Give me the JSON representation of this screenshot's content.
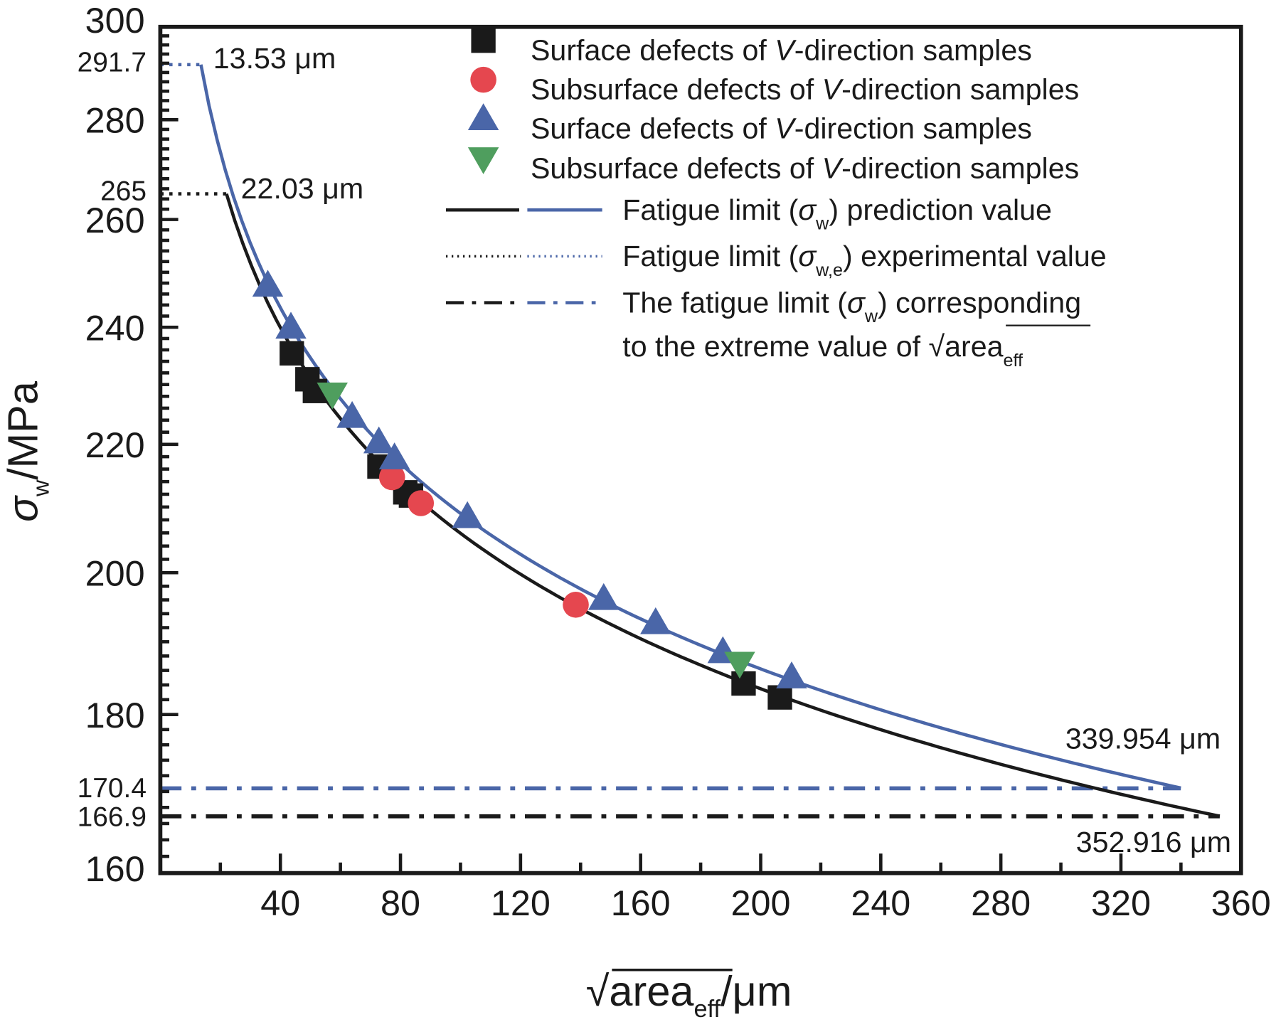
{
  "chart_data": {
    "type": "scatter",
    "title": "",
    "xlabel": "√area_eff/μm",
    "xlabel_parts": {
      "root": "√",
      "base": "area",
      "sub": "eff",
      "unit": "/μm"
    },
    "ylabel": "σw/MPa",
    "ylabel_parts": {
      "sym": "σ",
      "sub": "w",
      "unit": "/MPa"
    },
    "xlim": [
      0,
      360
    ],
    "ylim": [
      160,
      300
    ],
    "yscale": "log",
    "x_ticks": [
      40,
      80,
      120,
      160,
      200,
      240,
      280,
      320,
      360
    ],
    "x_tick_labels": [
      "40",
      "80",
      "120",
      "160",
      "200",
      "240",
      "280",
      "320",
      "360"
    ],
    "y_ticks": [
      160,
      180,
      200,
      220,
      240,
      260,
      280,
      300
    ],
    "y_tick_labels": [
      "160",
      "180",
      "200",
      "220",
      "240",
      "260",
      "280",
      "300"
    ],
    "y_special_ticks": [
      {
        "value": 291.7,
        "label": "291.7"
      },
      {
        "value": 265,
        "label": "265"
      },
      {
        "value": 170.4,
        "label": "170.4"
      },
      {
        "value": 166.9,
        "label": "166.9"
      }
    ],
    "grid": false,
    "legend_position": "top-right",
    "series": [
      {
        "name": "Surface defects of V-direction samples",
        "marker": "square",
        "color": "#1a1a1a",
        "points": [
          [
            43.8,
            235.4
          ],
          [
            49,
            230.9
          ],
          [
            51.5,
            228.9
          ],
          [
            73,
            216.4
          ],
          [
            81.6,
            212.3
          ],
          [
            83.5,
            211.8
          ],
          [
            194.3,
            184.2
          ],
          [
            206.4,
            182.3
          ]
        ]
      },
      {
        "name": "Subsurface defects of V-direction samples",
        "marker": "circle",
        "color": "#e5474f",
        "points": [
          [
            77.2,
            214.7
          ],
          [
            86.8,
            210.6
          ],
          [
            138.4,
            195.3
          ]
        ]
      },
      {
        "name": "Surface defects of V-direction samples",
        "marker": "triangle-up",
        "color": "#4a66a8",
        "points": [
          [
            35.8,
            247.6
          ],
          [
            43.5,
            240
          ],
          [
            63.9,
            224.6
          ],
          [
            72.8,
            220.4
          ],
          [
            78,
            217.8
          ],
          [
            102.3,
            208.5
          ],
          [
            147.7,
            196.2
          ],
          [
            165,
            192.7
          ],
          [
            187.4,
            188.6
          ],
          [
            210.3,
            185.1
          ]
        ]
      },
      {
        "name": "Subsurface defects of V-direction samples",
        "marker": "triangle-down",
        "color": "#4f9e5e",
        "points": [
          [
            57.3,
            228.4
          ],
          [
            193,
            187
          ]
        ]
      }
    ],
    "curves": [
      {
        "name": "Fatigue limit (σw) prediction value (black)",
        "color": "#1a1a1a",
        "x_start": 22.03,
        "x_end": 352.916,
        "y_start": 265,
        "y_end": 166.9,
        "form": "y = A·x^(-1/6)"
      },
      {
        "name": "Fatigue limit (σw) prediction value (blue)",
        "color": "#4a66a8",
        "x_start": 13.53,
        "x_end": 339.954,
        "y_start": 291.7,
        "y_end": 170.4,
        "form": "y = A·x^(-1/6)"
      }
    ],
    "reference_lines": [
      {
        "name": "Fatigue limit (σw,e) experimental value (blue)",
        "style": "dotted",
        "color": "#4a66a8",
        "y": 291.7,
        "x_from": 0,
        "x_to": 13.53
      },
      {
        "name": "Fatigue limit (σw,e) experimental value (black)",
        "style": "dotted",
        "color": "#1a1a1a",
        "y": 265,
        "x_from": 0,
        "x_to": 22.03
      },
      {
        "name": "Fatigue limit at extreme √area_eff (blue)",
        "style": "dash-dot",
        "color": "#4a66a8",
        "y": 170.4,
        "x_from": 0,
        "x_to": 339.954
      },
      {
        "name": "Fatigue limit at extreme √area_eff (black)",
        "style": "dash-dot",
        "color": "#1a1a1a",
        "y": 166.9,
        "x_from": 0,
        "x_to": 352.916
      }
    ],
    "annotations": [
      {
        "text": "13.53 μm",
        "x": 13.53,
        "y": 291.7
      },
      {
        "text": "22.03 μm",
        "x": 22.03,
        "y": 265
      },
      {
        "text": "339.954 μm",
        "x": 339.954,
        "y": 170.4
      },
      {
        "text": "352.916 μm",
        "x": 352.916,
        "y": 166.9
      }
    ],
    "legend": [
      {
        "symbol": "square",
        "color": "#1a1a1a",
        "pre": "Surface defects of ",
        "ital": "V",
        "post": "-direction samples"
      },
      {
        "symbol": "circle",
        "color": "#e5474f",
        "pre": "Subsurface defects of ",
        "ital": "V",
        "post": "-direction samples"
      },
      {
        "symbol": "triangle-up",
        "color": "#4a66a8",
        "pre": "Surface defects of ",
        "ital": "V",
        "post": "-direction samples"
      },
      {
        "symbol": "triangle-down",
        "color": "#4f9e5e",
        "pre": "Subsurface defects of ",
        "ital": "V",
        "post": "-direction samples"
      },
      {
        "symbol": "solid-lines",
        "pre": "Fatigue limit (",
        "sym": "σ",
        "sub": "w",
        "post": ") prediction value"
      },
      {
        "symbol": "dotted-lines",
        "pre": "Fatigue limit (",
        "sym": "σ",
        "sub": "w,e",
        "post": ") experimental value"
      },
      {
        "symbol": "dashdot-lines",
        "pre": "The fatigue limit (",
        "sym": "σ",
        "sub": "w",
        "post": ") corresponding",
        "line2_pre": "to the extreme value of ",
        "line2_root": "√",
        "line2_base": "area",
        "line2_sub": "eff"
      }
    ]
  }
}
